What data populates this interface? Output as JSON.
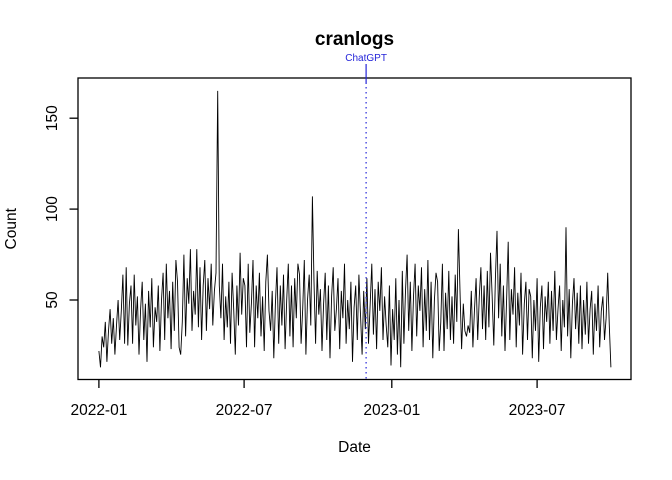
{
  "chart_data": {
    "type": "line",
    "title": "cranlogs",
    "xlabel": "Date",
    "ylabel": "Count",
    "series_color": "#000000",
    "x_start": "2022-01-01",
    "x_step_days": 2,
    "values": [
      22,
      13,
      30,
      24,
      38,
      16,
      33,
      45,
      26,
      40,
      20,
      36,
      50,
      28,
      44,
      64,
      26,
      68,
      25,
      48,
      58,
      26,
      64,
      36,
      52,
      20,
      45,
      60,
      28,
      48,
      16,
      55,
      35,
      62,
      24,
      46,
      38,
      58,
      22,
      50,
      65,
      28,
      70,
      40,
      55,
      23,
      60,
      33,
      72,
      60,
      24,
      20,
      38,
      75,
      30,
      62,
      48,
      78,
      33,
      55,
      42,
      78,
      35,
      68,
      28,
      58,
      72,
      33,
      62,
      45,
      70,
      36,
      55,
      65,
      165,
      58,
      40,
      70,
      28,
      52,
      35,
      60,
      26,
      65,
      45,
      20,
      58,
      36,
      76,
      42,
      62,
      58,
      24,
      70,
      32,
      48,
      72,
      24,
      58,
      40,
      65,
      30,
      52,
      22,
      60,
      75,
      44,
      33,
      55,
      18,
      48,
      68,
      26,
      58,
      36,
      64,
      23,
      50,
      70,
      30,
      58,
      24,
      62,
      40,
      70,
      64,
      26,
      45,
      72,
      20,
      50,
      64,
      36,
      107,
      60,
      26,
      66,
      42,
      56,
      22,
      48,
      65,
      28,
      58,
      18,
      52,
      68,
      33,
      45,
      62,
      23,
      55,
      40,
      70,
      26,
      50,
      34,
      60,
      16,
      46,
      58,
      28,
      64,
      42,
      20,
      55,
      34,
      62,
      26,
      48,
      70,
      31,
      56,
      23,
      60,
      44,
      68,
      28,
      52,
      36,
      24,
      58,
      14,
      45,
      28,
      62,
      20,
      50,
      13,
      66,
      26,
      55,
      75,
      33,
      60,
      22,
      52,
      70,
      30,
      58,
      44,
      68,
      24,
      56,
      33,
      72,
      28,
      60,
      18,
      50,
      65,
      60,
      22,
      38,
      70,
      22,
      54,
      34,
      66,
      28,
      52,
      26,
      64,
      38,
      89,
      55,
      23,
      48,
      33,
      30,
      36,
      32,
      55,
      24,
      45,
      62,
      28,
      52,
      68,
      34,
      58,
      28,
      66,
      35,
      76,
      53,
      25,
      62,
      88,
      40,
      70,
      30,
      58,
      22,
      50,
      82,
      28,
      56,
      42,
      68,
      24,
      54,
      36,
      65,
      20,
      48,
      60,
      28,
      56,
      52,
      18,
      50,
      33,
      62,
      16,
      46,
      58,
      23,
      52,
      38,
      60,
      26,
      55,
      33,
      66,
      28,
      45,
      58,
      22,
      50,
      35,
      90,
      30,
      56,
      18,
      48,
      62,
      34,
      54,
      26,
      58,
      23,
      50,
      31,
      60,
      26,
      45,
      55,
      20,
      48,
      33,
      58,
      24,
      44,
      52,
      28,
      40,
      65,
      36,
      13
    ],
    "xlim": [
      "2021-12-06",
      "2023-10-26"
    ],
    "ylim": [
      6.3,
      172.1
    ],
    "x_ticks": [
      {
        "date": "2022-01-01",
        "label": "2022-01"
      },
      {
        "date": "2022-07-01",
        "label": "2022-07"
      },
      {
        "date": "2023-01-01",
        "label": "2023-01"
      },
      {
        "date": "2023-07-01",
        "label": "2023-07"
      }
    ],
    "y_ticks": [
      {
        "value": 50,
        "label": "50"
      },
      {
        "value": 100,
        "label": "100"
      },
      {
        "value": 150,
        "label": "150"
      }
    ],
    "vline": {
      "date": "2022-11-30",
      "label": "ChatGPT",
      "color": "#2424d9",
      "style": "dotted"
    }
  }
}
